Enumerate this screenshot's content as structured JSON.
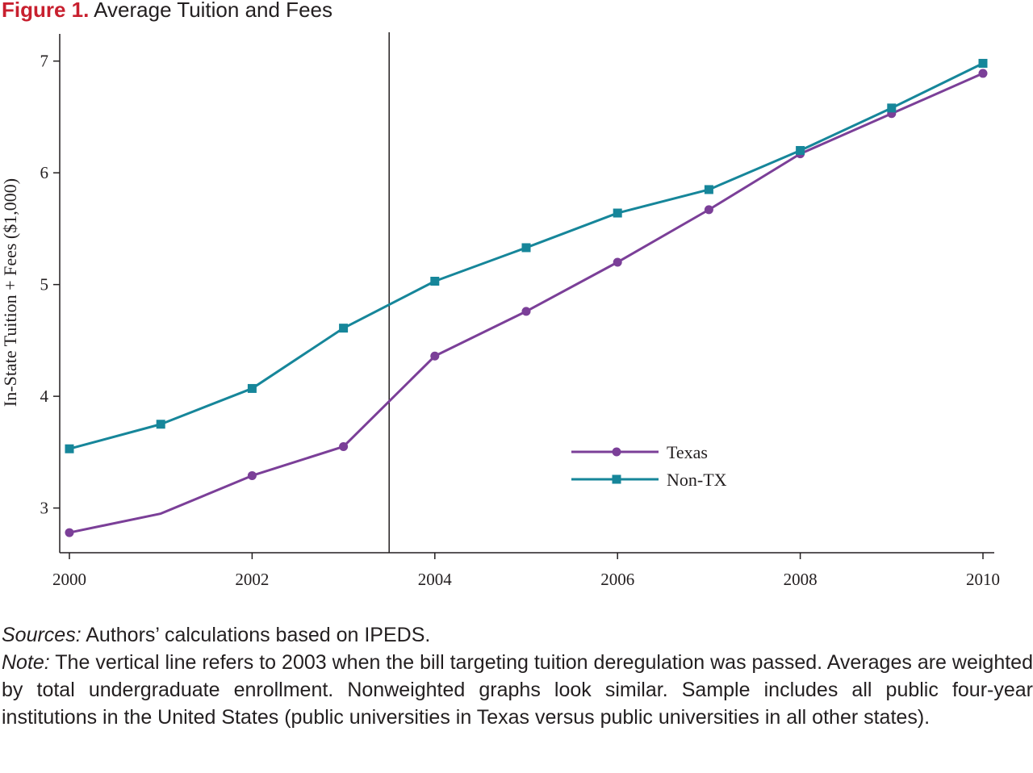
{
  "figure": {
    "label": "Figure 1.",
    "title": "Average Tuition and Fees"
  },
  "chart_data": {
    "type": "line",
    "ylabel": "In-State Tuition + Fees ($1,000)",
    "xlabel": "",
    "x": [
      2000,
      2001,
      2002,
      2003,
      2004,
      2005,
      2006,
      2007,
      2008,
      2009,
      2010
    ],
    "xticks": [
      "2000",
      "2002",
      "2004",
      "2006",
      "2008",
      "2010"
    ],
    "yticks": [
      "3",
      "4",
      "5",
      "6",
      "7"
    ],
    "xlim": [
      2000,
      2010
    ],
    "ylim": [
      2.6,
      7.2
    ],
    "grid": false,
    "legend_position": "center-right",
    "vertical_line": 2003.5,
    "series": [
      {
        "name": "Texas",
        "marker": "circle",
        "color": "#7b3f98",
        "values": [
          2.78,
          2.95,
          3.29,
          3.55,
          4.36,
          4.76,
          5.2,
          5.67,
          6.17,
          6.53,
          6.89
        ]
      },
      {
        "name": "Non-TX",
        "marker": "square",
        "color": "#16869a",
        "values": [
          3.53,
          3.75,
          4.07,
          4.61,
          5.03,
          5.33,
          5.64,
          5.85,
          6.2,
          6.58,
          6.98
        ]
      }
    ]
  },
  "notes": {
    "sources_label": "Sources:",
    "sources_text": " Authors’ calculations based on IPEDS.",
    "note_label": "Note:",
    "note_text": " The vertical line refers to 2003 when the bill targeting tuition deregulation was passed.  Averages are weighted by total undergraduate enrollment. Nonweighted graphs look similar. Sample includes all public four-year institutions in the United States (public universities in Texas versus public universities in all other states)."
  }
}
